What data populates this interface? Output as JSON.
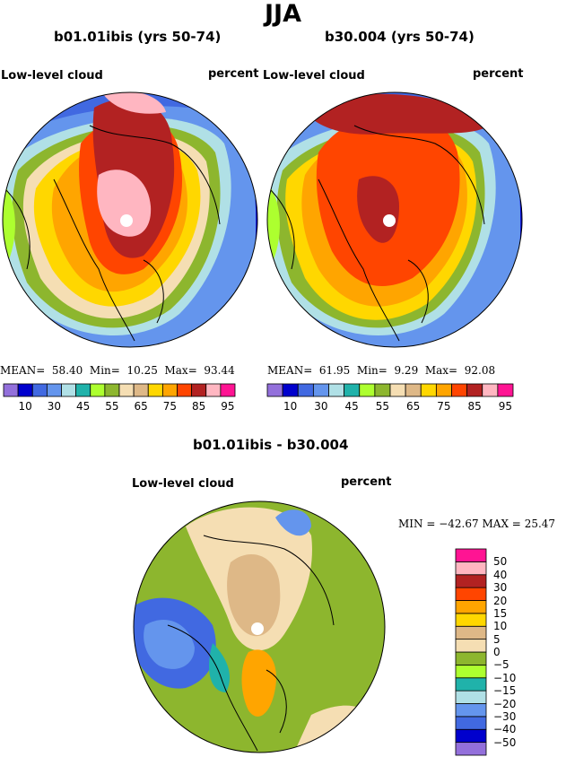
{
  "main_title": "JJA",
  "panels": [
    {
      "title": "b01.01ibis (yrs 50-74)",
      "variable": "Low-level cloud",
      "units": "percent",
      "stats": {
        "mean_label": "MEAN=",
        "mean": "58.40",
        "min_label": "Min=",
        "min": "10.25",
        "max_label": "Max=",
        "max": "93.44"
      }
    },
    {
      "title": "b30.004 (yrs 50-74)",
      "variable": "Low-level cloud",
      "units": "percent",
      "stats": {
        "mean_label": "MEAN=",
        "mean": "61.95",
        "min_label": "Min=",
        "min": "9.29",
        "max_label": "Max=",
        "max": "92.08"
      }
    }
  ],
  "abs_colorbar": {
    "colors": [
      "#9370DB",
      "#0000CD",
      "#4169E1",
      "#6495ED",
      "#B0E0E6",
      "#20B2AA",
      "#ADFF2F",
      "#8DB62E",
      "#F5DEB3",
      "#DEB887",
      "#FFD700",
      "#FFA500",
      "#FF4500",
      "#B22222",
      "#FFB6C1",
      "#FF1493"
    ],
    "labels": [
      "10",
      "30",
      "45",
      "55",
      "65",
      "75",
      "85",
      "95"
    ]
  },
  "diff_panel": {
    "title": "b01.01ibis - b30.004",
    "variable": "Low-level cloud",
    "units": "percent",
    "stats": {
      "min_label": "MIN =",
      "min": "−42.67",
      "max_label": "MAX =",
      "max": "25.47"
    }
  },
  "diff_colorbar": {
    "colors": [
      "#9370DB",
      "#0000CD",
      "#4169E1",
      "#6495ED",
      "#B0E0E6",
      "#20B2AA",
      "#ADFF2F",
      "#8DB62E",
      "#F5DEB3",
      "#DEB887",
      "#FFD700",
      "#FFA500",
      "#FF4500",
      "#B22222",
      "#FFB6C1",
      "#FF1493"
    ],
    "labels": [
      "−50",
      "−40",
      "−30",
      "−20",
      "−15",
      "−10",
      "−5",
      "0",
      "5",
      "10",
      "15",
      "20",
      "30",
      "40",
      "50"
    ]
  }
}
